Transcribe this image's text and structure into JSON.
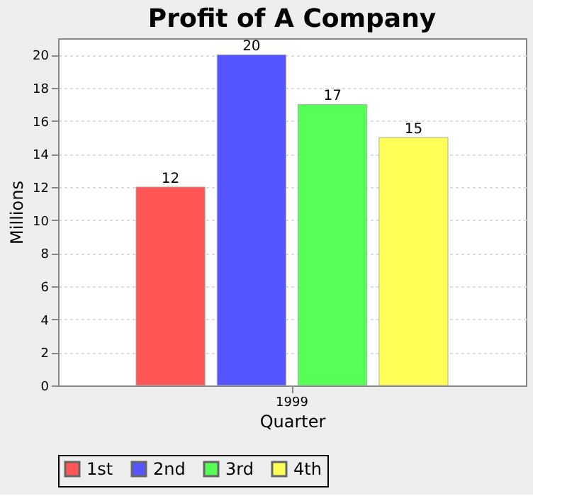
{
  "chart_data": {
    "type": "bar",
    "title": "Profit of A Company",
    "xlabel": "Quarter",
    "ylabel": "Millions",
    "categories": [
      "1999"
    ],
    "series": [
      {
        "name": "1st",
        "color": "#ff5555",
        "values": [
          12
        ]
      },
      {
        "name": "2nd",
        "color": "#5555ff",
        "values": [
          20
        ]
      },
      {
        "name": "3rd",
        "color": "#55ff55",
        "values": [
          17
        ]
      },
      {
        "name": "4th",
        "color": "#ffff55",
        "values": [
          15
        ]
      }
    ],
    "ylim": [
      0,
      21
    ],
    "yticks": [
      0,
      2,
      4,
      6,
      8,
      10,
      12,
      14,
      16,
      18,
      20
    ],
    "grid": "y",
    "legend": "bottom",
    "data_labels": true
  }
}
